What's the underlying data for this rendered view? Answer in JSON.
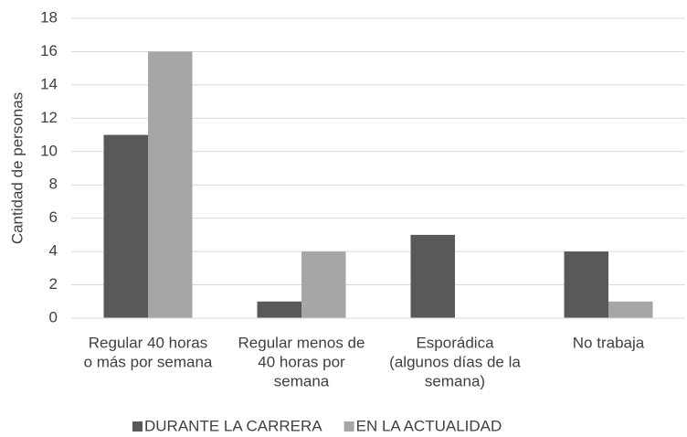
{
  "chart_data": {
    "type": "bar",
    "ylabel": "Cantidad de personas",
    "categories": [
      [
        "Regular 40 horas",
        "o más por semana"
      ],
      [
        "Regular menos de",
        "40 horas por",
        "semana"
      ],
      [
        "Esporádica",
        "(algunos días de la",
        "semana)"
      ],
      [
        "No trabaja"
      ]
    ],
    "series": [
      {
        "name": "DURANTE LA CARRERA",
        "color": "#595959",
        "values": [
          11,
          1,
          5,
          4
        ]
      },
      {
        "name": "EN LA ACTUALIDAD",
        "color": "#a6a6a6",
        "values": [
          16,
          4,
          0,
          1
        ]
      }
    ],
    "ylim": [
      0,
      18
    ],
    "yticks": [
      0,
      2,
      4,
      6,
      8,
      10,
      12,
      14,
      16,
      18
    ],
    "grid": true,
    "legend": "bottom"
  }
}
